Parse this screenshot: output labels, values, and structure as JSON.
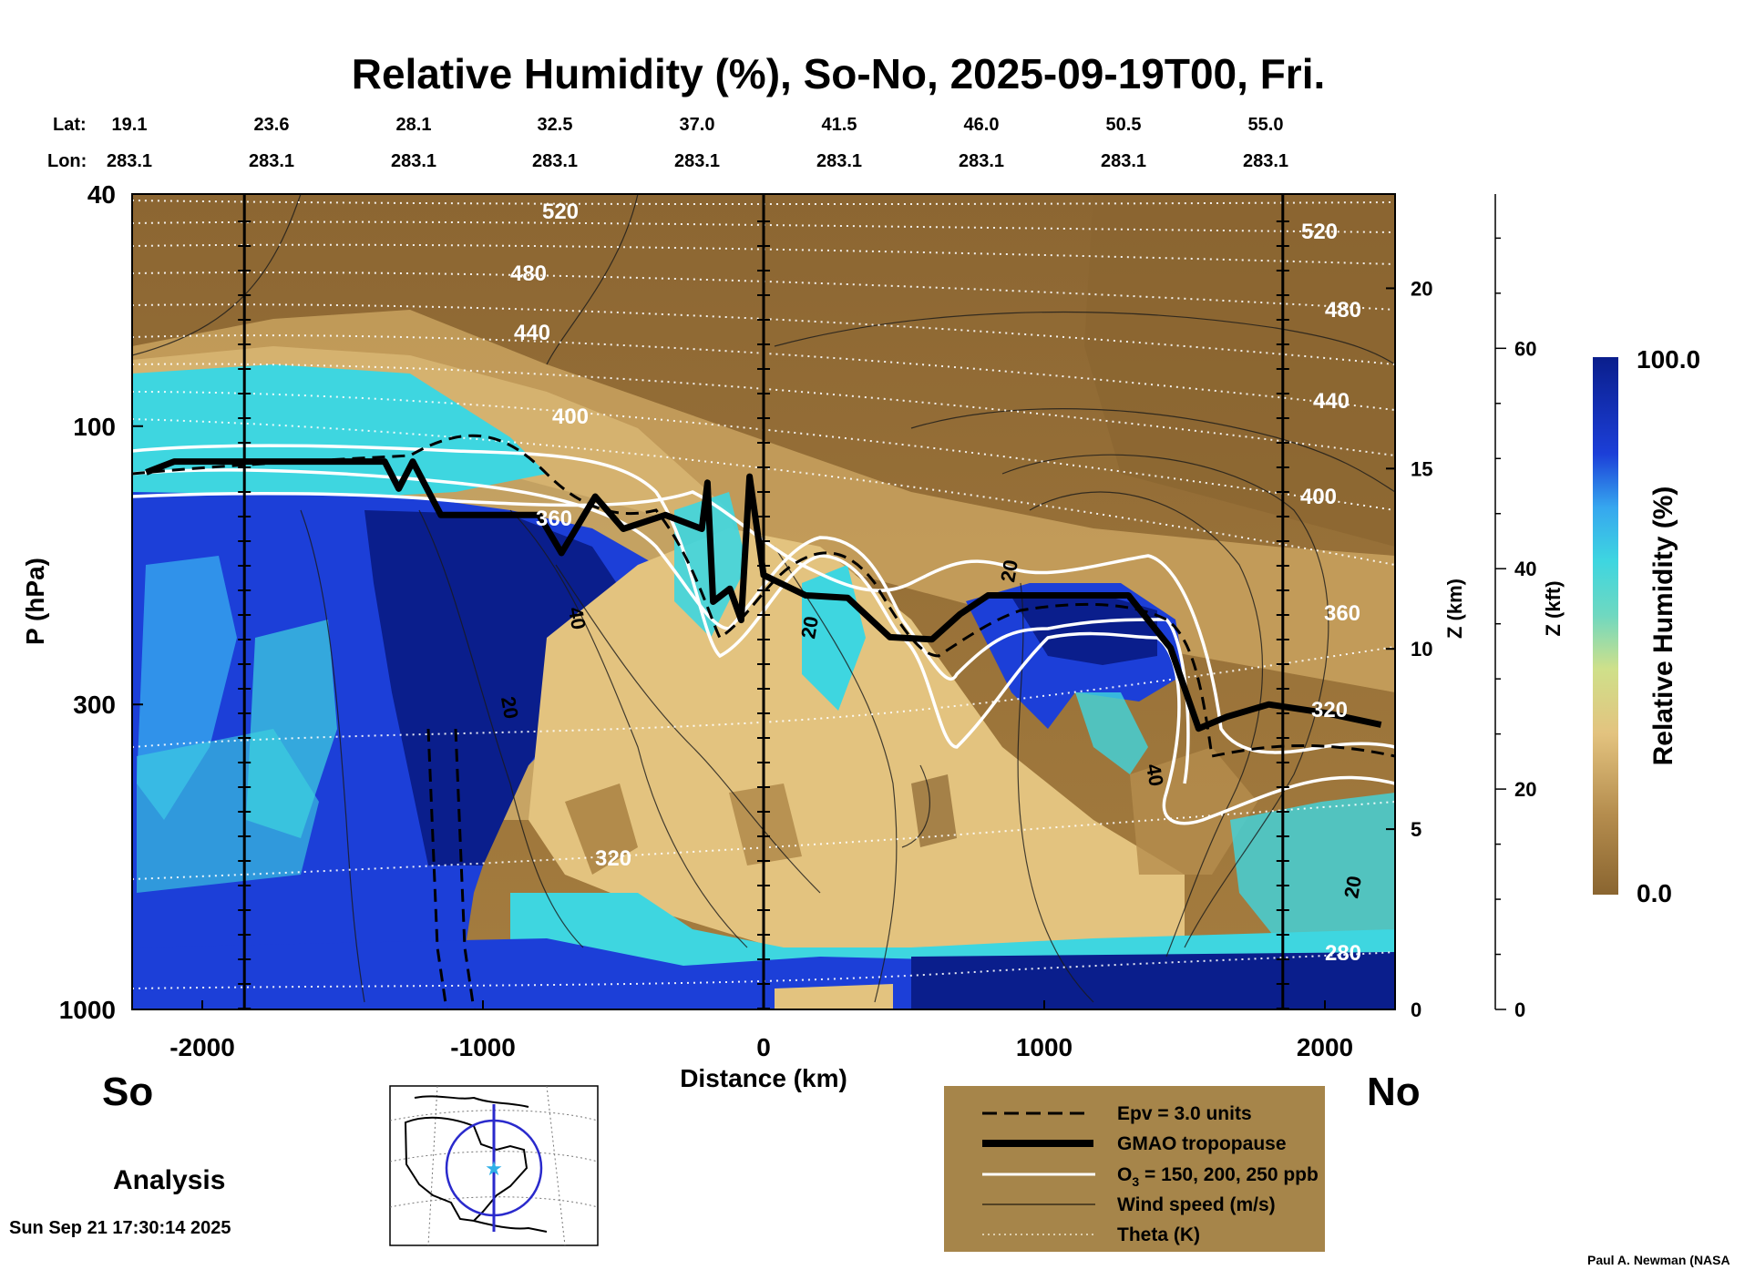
{
  "chart_data": {
    "type": "heatmap",
    "title": "Relative Humidity (%), So-No, 2025-09-19T00, Fri.",
    "xlabel": "Distance (km)",
    "ylabel": "P (hPa)",
    "xlim": [
      -2250,
      2250
    ],
    "ylim": [
      1000,
      40
    ],
    "x_ticks": [
      -2000,
      -1000,
      0,
      1000,
      2000
    ],
    "x_tick_labels": [
      "-2000",
      "-1000",
      "0",
      "1000",
      "2000"
    ],
    "p_ticks": [
      40,
      100,
      300,
      1000
    ],
    "p_tick_labels": [
      "40",
      "100",
      "300",
      "1000"
    ],
    "z_axis": {
      "label": "Z (km)",
      "ticks": [
        0,
        5,
        10,
        15,
        20
      ],
      "labels": [
        "0",
        "5",
        "10",
        "15",
        "20"
      ]
    },
    "kft_axis": {
      "label": "Z (kft)",
      "ticks": [
        0,
        20,
        40,
        60
      ],
      "labels": [
        "0",
        "20",
        "40",
        "60"
      ]
    },
    "lat_label": "Lat:",
    "lon_label": "Lon:",
    "lat_lon": [
      {
        "lat": "19.1",
        "lon": "283.1"
      },
      {
        "lat": "23.6",
        "lon": "283.1"
      },
      {
        "lat": "28.1",
        "lon": "283.1"
      },
      {
        "lat": "32.5",
        "lon": "283.1"
      },
      {
        "lat": "37.0",
        "lon": "283.1"
      },
      {
        "lat": "41.5",
        "lon": "283.1"
      },
      {
        "lat": "46.0",
        "lon": "283.1"
      },
      {
        "lat": "50.5",
        "lon": "283.1"
      },
      {
        "lat": "55.0",
        "lon": "283.1"
      }
    ],
    "colorbar": {
      "label": "Relative Humidity (%)",
      "min": 0.0,
      "max": 100.0,
      "min_label": "0.0",
      "max_label": "100.0"
    },
    "theta_labels": [
      "520",
      "480",
      "440",
      "400",
      "360",
      "320",
      "520",
      "480",
      "440",
      "400",
      "360",
      "320",
      "280"
    ],
    "wind_labels": [
      "40",
      "20",
      "20",
      "20",
      "40",
      "20"
    ],
    "vertical_markers_km": [
      -1850,
      0,
      1850
    ],
    "tropopause_p_hpa": [
      {
        "x": -2200,
        "p": 120
      },
      {
        "x": -2100,
        "p": 115
      },
      {
        "x": -1800,
        "p": 115
      },
      {
        "x": -1350,
        "p": 115
      },
      {
        "x": -1300,
        "p": 128
      },
      {
        "x": -1250,
        "p": 115
      },
      {
        "x": -1150,
        "p": 142
      },
      {
        "x": -800,
        "p": 142
      },
      {
        "x": -720,
        "p": 165
      },
      {
        "x": -600,
        "p": 132
      },
      {
        "x": -500,
        "p": 150
      },
      {
        "x": -350,
        "p": 142
      },
      {
        "x": -220,
        "p": 150
      },
      {
        "x": -200,
        "p": 125
      },
      {
        "x": -180,
        "p": 200
      },
      {
        "x": -120,
        "p": 190
      },
      {
        "x": -80,
        "p": 215
      },
      {
        "x": -50,
        "p": 122
      },
      {
        "x": 0,
        "p": 180
      },
      {
        "x": 150,
        "p": 195
      },
      {
        "x": 300,
        "p": 197
      },
      {
        "x": 450,
        "p": 230
      },
      {
        "x": 600,
        "p": 232
      },
      {
        "x": 700,
        "p": 210
      },
      {
        "x": 800,
        "p": 195
      },
      {
        "x": 1000,
        "p": 195
      },
      {
        "x": 1300,
        "p": 195
      },
      {
        "x": 1450,
        "p": 240
      },
      {
        "x": 1550,
        "p": 330
      },
      {
        "x": 1650,
        "p": 315
      },
      {
        "x": 1800,
        "p": 300
      },
      {
        "x": 2000,
        "p": 310
      },
      {
        "x": 2200,
        "p": 325
      }
    ],
    "map_inset_label": "Analysis",
    "south_label": "So",
    "north_label": "No",
    "legend": [
      {
        "label": "Epv = 3.0 units",
        "style": "dashed-black"
      },
      {
        "label": "GMAO tropopause",
        "style": "thick-black"
      },
      {
        "label": "O",
        "sub": "3",
        "label_rest": " = 150, 200, 250 ppb",
        "style": "white"
      },
      {
        "label": "Wind speed (m/s)",
        "style": "thin-black"
      },
      {
        "label": "Theta (K)",
        "style": "dotted-white"
      }
    ],
    "timestamp": "Sun Sep 21 17:30:14 2025",
    "credit": "Paul A. Newman (NASA"
  },
  "colors": {
    "brown_dark": "#8a6530",
    "brown": "#a57d3f",
    "tan": "#c9a25f",
    "light_tan": "#e3c37f",
    "cyan": "#3ed6e0",
    "blue": "#1c3fd8",
    "navy": "#0a1e8c",
    "legend_bg": "#a6854a"
  }
}
